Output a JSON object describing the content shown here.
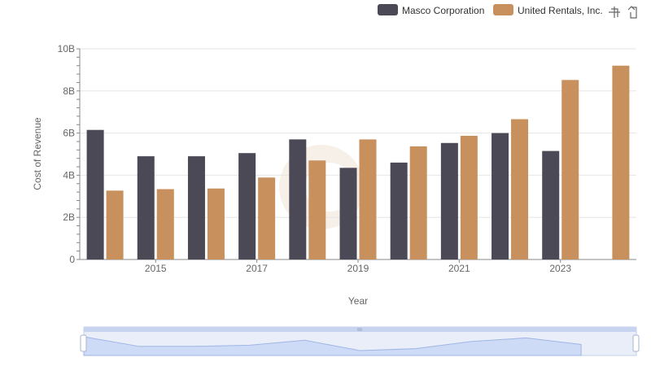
{
  "toolbar": {
    "zoom_icon": "zoom-icon",
    "reset_icon": "reset-icon"
  },
  "chart_data": {
    "type": "bar",
    "xlabel": "Year",
    "ylabel": "Cost of Revenue",
    "ylim": [
      0,
      10000000000
    ],
    "y_ticks": [
      "0",
      "2B",
      "4B",
      "6B",
      "8B",
      "10B"
    ],
    "x_ticks": [
      "2015",
      "2017",
      "2019",
      "2021",
      "2023"
    ],
    "categories": [
      2014,
      2015,
      2016,
      2017,
      2018,
      2019,
      2020,
      2021,
      2022,
      2023,
      2024
    ],
    "grid": true,
    "legend_position": "top-right",
    "series": [
      {
        "name": "Masco Corporation",
        "color": "#4a4955",
        "values": [
          6150000000,
          4900000000,
          4900000000,
          5050000000,
          5700000000,
          4350000000,
          4600000000,
          5530000000,
          6000000000,
          5150000000,
          null
        ]
      },
      {
        "name": "United Rentals, Inc.",
        "color": "#c8905c",
        "values": [
          3270000000,
          3340000000,
          3370000000,
          3890000000,
          4700000000,
          5700000000,
          5370000000,
          5870000000,
          6660000000,
          8520000000,
          9200000000
        ]
      }
    ]
  }
}
